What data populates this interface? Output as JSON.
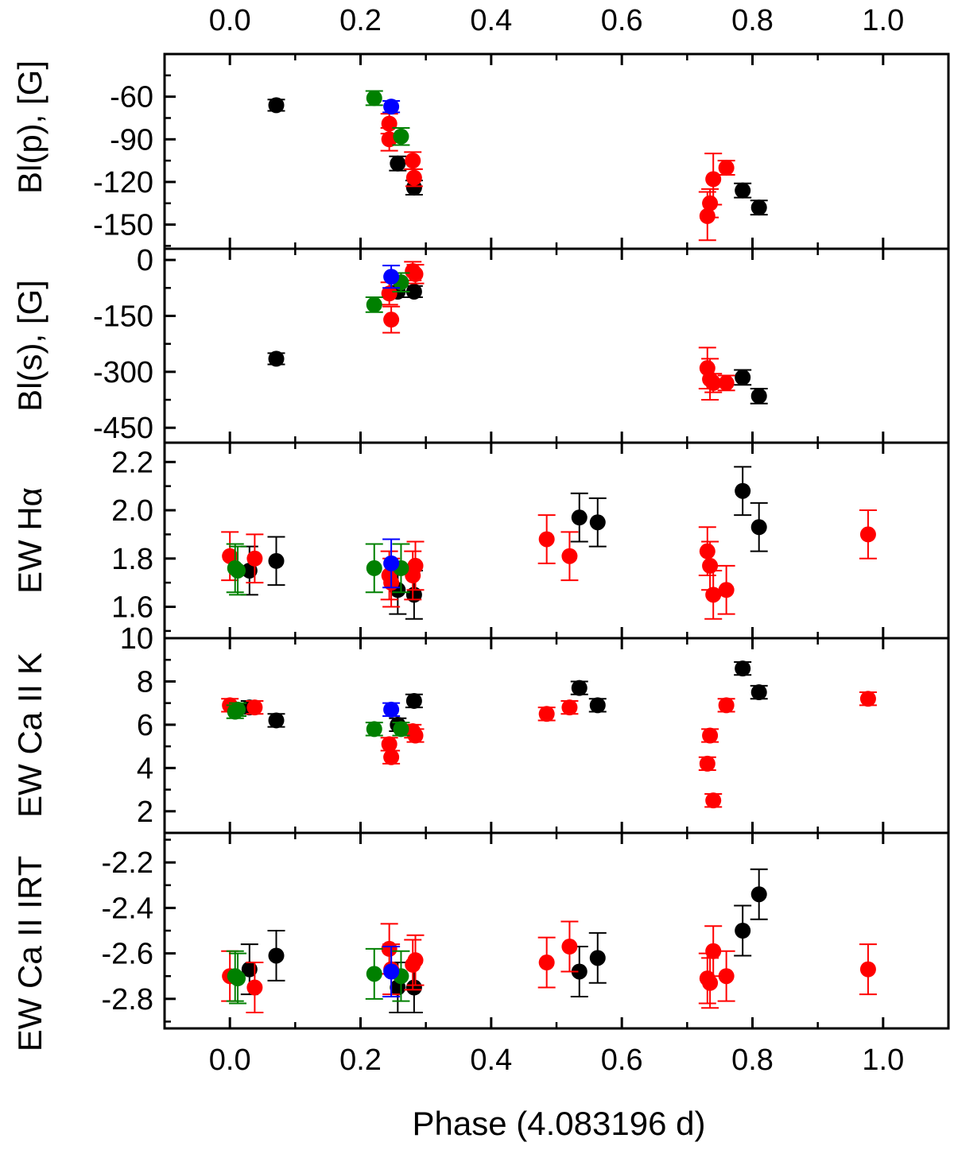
{
  "chart_data": {
    "type": "scatter",
    "title": "",
    "xlabel": "Phase (4.083196 d)",
    "xlim": [
      -0.1,
      1.1
    ],
    "xticks": [
      "0.0",
      "0.2",
      "0.4",
      "0.6",
      "0.8",
      "1.0"
    ],
    "colors": {
      "black": "#000000",
      "red": "#ff0000",
      "green": "#008000",
      "blue": "#0000ff"
    },
    "panels": [
      {
        "id": "blp",
        "ylabel": "Bl(p), [G]",
        "ylim": [
          -167,
          -30
        ],
        "yticks": [
          "-60",
          "-90",
          "-120",
          "-150"
        ],
        "series": [
          {
            "color": "black",
            "points": [
              [
                0.071,
                -66,
                4
              ],
              [
                0.257,
                -107,
                5
              ],
              [
                0.282,
                -124,
                5
              ],
              [
                0.785,
                -126,
                5
              ],
              [
                0.81,
                -138,
                5
              ]
            ]
          },
          {
            "color": "red",
            "points": [
              [
                0.244,
                -79,
                7
              ],
              [
                0.244,
                -90,
                8
              ],
              [
                0.28,
                -105,
                6
              ],
              [
                0.282,
                -117,
                6
              ],
              [
                0.731,
                -144,
                17
              ],
              [
                0.735,
                -135,
                10
              ],
              [
                0.74,
                -118,
                18
              ],
              [
                0.76,
                -110,
                5
              ]
            ]
          },
          {
            "color": "green",
            "points": [
              [
                0.221,
                -61,
                5
              ],
              [
                0.262,
                -88,
                6
              ]
            ]
          },
          {
            "color": "blue",
            "points": [
              [
                0.247,
                -67,
                4
              ]
            ]
          }
        ]
      },
      {
        "id": "bls",
        "ylabel": "Bl(s), [G]",
        "ylim": [
          -490,
          30
        ],
        "yticks": [
          "0",
          "-150",
          "-300",
          "-450"
        ],
        "series": [
          {
            "color": "black",
            "points": [
              [
                0.071,
                -265,
                15
              ],
              [
                0.257,
                -85,
                15
              ],
              [
                0.282,
                -85,
                15
              ],
              [
                0.785,
                -315,
                20
              ],
              [
                0.81,
                -365,
                20
              ]
            ]
          },
          {
            "color": "red",
            "points": [
              [
                0.244,
                -90,
                30
              ],
              [
                0.247,
                -160,
                35
              ],
              [
                0.28,
                -30,
                25
              ],
              [
                0.284,
                -38,
                25
              ],
              [
                0.731,
                -290,
                55
              ],
              [
                0.735,
                -320,
                55
              ],
              [
                0.74,
                -330,
                25
              ],
              [
                0.76,
                -330,
                20
              ]
            ]
          },
          {
            "color": "green",
            "points": [
              [
                0.221,
                -120,
                20
              ],
              [
                0.262,
                -60,
                25
              ]
            ]
          },
          {
            "color": "blue",
            "points": [
              [
                0.247,
                -45,
                30
              ]
            ]
          }
        ]
      },
      {
        "id": "ewha",
        "ylabel": "EW Hα",
        "ylim": [
          1.47,
          2.28
        ],
        "yticks": [
          "1.6",
          "1.8",
          "2.0",
          "2.2"
        ],
        "series": [
          {
            "color": "black",
            "points": [
              [
                0.03,
                1.75,
                0.1
              ],
              [
                0.071,
                1.79,
                0.1
              ],
              [
                0.257,
                1.67,
                0.1
              ],
              [
                0.282,
                1.65,
                0.1
              ],
              [
                0.535,
                1.97,
                0.1
              ],
              [
                0.563,
                1.95,
                0.1
              ],
              [
                0.785,
                2.08,
                0.1
              ],
              [
                0.81,
                1.93,
                0.1
              ]
            ]
          },
          {
            "color": "red",
            "points": [
              [
                0.0,
                1.81,
                0.1
              ],
              [
                0.038,
                1.8,
                0.1
              ],
              [
                0.244,
                1.73,
                0.1
              ],
              [
                0.247,
                1.7,
                0.1
              ],
              [
                0.28,
                1.73,
                0.1
              ],
              [
                0.284,
                1.77,
                0.1
              ],
              [
                0.485,
                1.88,
                0.1
              ],
              [
                0.52,
                1.81,
                0.1
              ],
              [
                0.731,
                1.83,
                0.1
              ],
              [
                0.735,
                1.77,
                0.1
              ],
              [
                0.74,
                1.65,
                0.1
              ],
              [
                0.76,
                1.67,
                0.1
              ],
              [
                0.977,
                1.9,
                0.1
              ]
            ]
          },
          {
            "color": "green",
            "points": [
              [
                0.008,
                1.76,
                0.1
              ],
              [
                0.012,
                1.75,
                0.1
              ],
              [
                0.221,
                1.76,
                0.1
              ],
              [
                0.262,
                1.76,
                0.1
              ]
            ]
          },
          {
            "color": "blue",
            "points": [
              [
                0.247,
                1.78,
                0.1
              ]
            ]
          }
        ]
      },
      {
        "id": "ewcak",
        "ylabel": "EW Ca II K",
        "ylim": [
          1.0,
          10.0
        ],
        "yticks": [
          "2",
          "4",
          "6",
          "8",
          "10"
        ],
        "series": [
          {
            "color": "black",
            "points": [
              [
                0.03,
                6.8,
                0.3
              ],
              [
                0.071,
                6.2,
                0.3
              ],
              [
                0.257,
                6.0,
                0.3
              ],
              [
                0.282,
                7.1,
                0.3
              ],
              [
                0.535,
                7.7,
                0.3
              ],
              [
                0.563,
                6.9,
                0.3
              ],
              [
                0.785,
                8.6,
                0.3
              ],
              [
                0.81,
                7.5,
                0.3
              ]
            ]
          },
          {
            "color": "red",
            "points": [
              [
                0.0,
                6.9,
                0.3
              ],
              [
                0.038,
                6.8,
                0.3
              ],
              [
                0.244,
                5.1,
                0.3
              ],
              [
                0.247,
                4.5,
                0.3
              ],
              [
                0.28,
                5.7,
                0.3
              ],
              [
                0.284,
                5.5,
                0.3
              ],
              [
                0.485,
                6.5,
                0.3
              ],
              [
                0.52,
                6.8,
                0.3
              ],
              [
                0.731,
                4.2,
                0.3
              ],
              [
                0.735,
                5.5,
                0.3
              ],
              [
                0.74,
                2.5,
                0.3
              ],
              [
                0.76,
                6.9,
                0.3
              ],
              [
                0.977,
                7.2,
                0.3
              ]
            ]
          },
          {
            "color": "green",
            "points": [
              [
                0.008,
                6.6,
                0.3
              ],
              [
                0.012,
                6.7,
                0.3
              ],
              [
                0.221,
                5.8,
                0.3
              ],
              [
                0.262,
                5.8,
                0.3
              ]
            ]
          },
          {
            "color": "blue",
            "points": [
              [
                0.247,
                6.7,
                0.3
              ]
            ]
          }
        ]
      },
      {
        "id": "ewcairt",
        "ylabel": "EW Ca II IRT",
        "ylim": [
          -2.93,
          -2.07
        ],
        "yticks": [
          "-2.8",
          "-2.6",
          "-2.4",
          "-2.2"
        ],
        "series": [
          {
            "color": "black",
            "points": [
              [
                0.03,
                -2.67,
                0.11
              ],
              [
                0.071,
                -2.61,
                0.11
              ],
              [
                0.257,
                -2.75,
                0.11
              ],
              [
                0.282,
                -2.75,
                0.11
              ],
              [
                0.535,
                -2.68,
                0.11
              ],
              [
                0.563,
                -2.62,
                0.11
              ],
              [
                0.785,
                -2.5,
                0.11
              ],
              [
                0.81,
                -2.34,
                0.11
              ]
            ]
          },
          {
            "color": "red",
            "points": [
              [
                0.0,
                -2.7,
                0.11
              ],
              [
                0.038,
                -2.75,
                0.11
              ],
              [
                0.244,
                -2.58,
                0.11
              ],
              [
                0.247,
                -2.67,
                0.11
              ],
              [
                0.28,
                -2.65,
                0.11
              ],
              [
                0.284,
                -2.63,
                0.11
              ],
              [
                0.485,
                -2.64,
                0.11
              ],
              [
                0.52,
                -2.57,
                0.11
              ],
              [
                0.731,
                -2.71,
                0.11
              ],
              [
                0.735,
                -2.73,
                0.11
              ],
              [
                0.74,
                -2.59,
                0.11
              ],
              [
                0.76,
                -2.7,
                0.11
              ],
              [
                0.977,
                -2.67,
                0.11
              ]
            ]
          },
          {
            "color": "green",
            "points": [
              [
                0.008,
                -2.7,
                0.11
              ],
              [
                0.012,
                -2.71,
                0.11
              ],
              [
                0.221,
                -2.69,
                0.11
              ],
              [
                0.262,
                -2.7,
                0.11
              ]
            ]
          },
          {
            "color": "blue",
            "points": [
              [
                0.247,
                -2.68,
                0.11
              ]
            ]
          }
        ]
      }
    ]
  }
}
